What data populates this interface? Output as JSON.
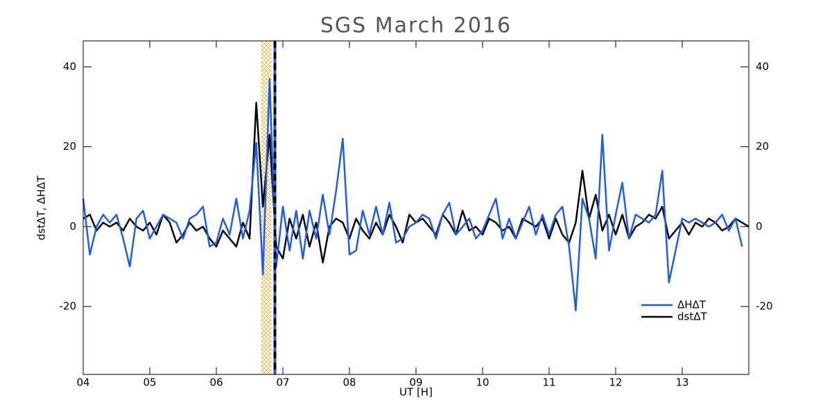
{
  "chart_data": {
    "type": "line",
    "title": "SGS March 2016",
    "xlabel": "UT [H]",
    "ylabel": "dstΔT, ΔHΔT",
    "xlim": [
      4,
      14
    ],
    "ylim": [
      -37,
      46.5
    ],
    "xticks": [
      {
        "value": 4,
        "label": "04"
      },
      {
        "value": 5,
        "label": "05"
      },
      {
        "value": 6,
        "label": "06"
      },
      {
        "value": 7,
        "label": "07"
      },
      {
        "value": 8,
        "label": "08"
      },
      {
        "value": 9,
        "label": "09"
      },
      {
        "value": 10,
        "label": "10"
      },
      {
        "value": 11,
        "label": "11"
      },
      {
        "value": 12,
        "label": "12"
      },
      {
        "value": 13,
        "label": "13"
      }
    ],
    "yticks": [
      -20,
      0,
      20,
      40
    ],
    "right_axis": true,
    "legend": "lower right",
    "shaded_region": [
      6.67,
      6.83
    ],
    "vline": 6.88,
    "x": [
      4.0,
      4.1,
      4.2,
      4.3,
      4.4,
      4.5,
      4.6,
      4.7,
      4.8,
      4.9,
      5.0,
      5.1,
      5.2,
      5.3,
      5.4,
      5.5,
      5.6,
      5.7,
      5.8,
      5.9,
      6.0,
      6.1,
      6.2,
      6.3,
      6.4,
      6.5,
      6.6,
      6.7,
      6.8,
      6.9,
      7.0,
      7.1,
      7.2,
      7.3,
      7.4,
      7.5,
      7.6,
      7.7,
      7.8,
      7.9,
      8.0,
      8.1,
      8.2,
      8.3,
      8.4,
      8.5,
      8.6,
      8.7,
      8.8,
      8.9,
      9.0,
      9.1,
      9.2,
      9.3,
      9.4,
      9.5,
      9.6,
      9.7,
      9.8,
      9.9,
      10.0,
      10.1,
      10.2,
      10.3,
      10.4,
      10.5,
      10.6,
      10.7,
      10.8,
      10.9,
      11.0,
      11.1,
      11.2,
      11.3,
      11.4,
      11.5,
      11.6,
      11.7,
      11.8,
      11.9,
      12.0,
      12.1,
      12.2,
      12.3,
      12.4,
      12.5,
      12.6,
      12.7,
      12.8,
      12.9,
      13.0,
      13.1,
      13.2,
      13.3,
      13.4,
      13.5,
      13.6,
      13.7,
      13.8,
      13.9,
      14.0
    ],
    "series": [
      {
        "name": "ΔHΔT",
        "color": "#1a5cf0",
        "values": [
          7,
          -7,
          0,
          3,
          1,
          3,
          -3,
          -10,
          2,
          4,
          -3,
          0,
          3,
          2,
          1,
          -3,
          2,
          3,
          5,
          -5,
          -4,
          2,
          -2,
          7,
          -3,
          4,
          21,
          -12,
          37,
          -10,
          5,
          -6,
          4,
          -8,
          4,
          -3,
          8,
          -2,
          9,
          22,
          -7,
          -6,
          4,
          -2,
          5,
          -2,
          6,
          -4,
          -3,
          0,
          1,
          3,
          2,
          -3,
          3,
          6,
          -2,
          0,
          2,
          -3,
          -1,
          3,
          7,
          -3,
          2,
          -3,
          1,
          5,
          -2,
          3,
          -2,
          3,
          5,
          -5,
          -21,
          7,
          2,
          -8,
          23,
          -6,
          3,
          11,
          -3,
          3,
          2,
          1,
          3,
          14,
          -14,
          -6,
          2,
          1,
          2,
          1,
          0,
          1,
          3,
          -1,
          2,
          -5,
          null
        ]
      },
      {
        "name": "dstΔT",
        "color": "#000000",
        "values": [
          2,
          3,
          -1,
          1,
          0,
          1,
          -1,
          2,
          0,
          -1,
          1,
          -2,
          3,
          1,
          -4,
          -2,
          1,
          -1,
          0,
          -3,
          -5,
          -1,
          -3,
          -5,
          1,
          -3,
          31,
          5,
          23,
          -5,
          -8,
          2,
          -3,
          3,
          -5,
          1,
          -9,
          0,
          2,
          1,
          -3,
          2,
          -1,
          -3,
          1,
          -2,
          3,
          0,
          -4,
          3,
          1,
          2,
          0,
          -2,
          3,
          1,
          -2,
          4,
          -1,
          0,
          -2,
          2,
          1,
          -1,
          0,
          -3,
          2,
          1,
          0,
          2,
          -3,
          2,
          -2,
          -4,
          1,
          14,
          2,
          8,
          -1,
          3,
          -2,
          3,
          -3,
          0,
          1,
          3,
          2,
          5,
          -3,
          -1,
          1,
          -2,
          1,
          0,
          2,
          1,
          -1,
          0,
          2,
          1,
          0
        ]
      }
    ]
  }
}
